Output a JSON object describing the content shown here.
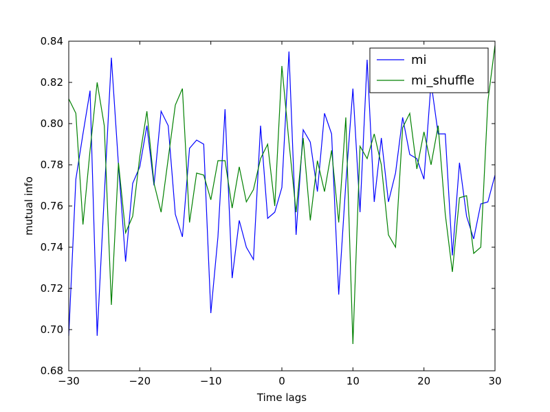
{
  "chart_data": {
    "type": "line",
    "title": "",
    "xlabel": "Time lags",
    "ylabel": "mutual info",
    "xlim": [
      -30,
      30
    ],
    "ylim": [
      0.68,
      0.84
    ],
    "xticks": [
      -30,
      -20,
      -10,
      0,
      10,
      20,
      30
    ],
    "xtick_labels": [
      "−30",
      "−20",
      "−10",
      "0",
      "10",
      "20",
      "30"
    ],
    "yticks": [
      0.68,
      0.7,
      0.72,
      0.74,
      0.76,
      0.78,
      0.8,
      0.82,
      0.84
    ],
    "ytick_labels": [
      "0.68",
      "0.70",
      "0.72",
      "0.74",
      "0.76",
      "0.78",
      "0.80",
      "0.82",
      "0.84"
    ],
    "grid": false,
    "legend_position": "top-right",
    "x": [
      -30,
      -29,
      -28,
      -27,
      -26,
      -25,
      -24,
      -23,
      -22,
      -21,
      -20,
      -19,
      -18,
      -17,
      -16,
      -15,
      -14,
      -13,
      -12,
      -11,
      -10,
      -9,
      -8,
      -7,
      -6,
      -5,
      -4,
      -3,
      -2,
      -1,
      0,
      1,
      2,
      3,
      4,
      5,
      6,
      7,
      8,
      9,
      10,
      11,
      12,
      13,
      14,
      15,
      16,
      17,
      18,
      19,
      20,
      21,
      22,
      23,
      24,
      25,
      26,
      27,
      28,
      29,
      30
    ],
    "series": [
      {
        "name": "mi",
        "color": "#0000ff",
        "values": [
          0.697,
          0.773,
          0.795,
          0.816,
          0.697,
          0.765,
          0.832,
          0.78,
          0.733,
          0.771,
          0.779,
          0.799,
          0.77,
          0.806,
          0.799,
          0.756,
          0.745,
          0.788,
          0.792,
          0.79,
          0.708,
          0.745,
          0.807,
          0.725,
          0.753,
          0.74,
          0.734,
          0.799,
          0.754,
          0.757,
          0.769,
          0.835,
          0.746,
          0.797,
          0.791,
          0.767,
          0.805,
          0.795,
          0.717,
          0.771,
          0.817,
          0.757,
          0.831,
          0.762,
          0.793,
          0.762,
          0.776,
          0.803,
          0.785,
          0.783,
          0.773,
          0.82,
          0.795,
          0.795,
          0.736,
          0.781,
          0.755,
          0.744,
          0.761,
          0.762,
          0.775
        ]
      },
      {
        "name": "mi_shuffle",
        "color": "#008000",
        "values": [
          0.812,
          0.805,
          0.751,
          0.787,
          0.82,
          0.799,
          0.712,
          0.781,
          0.747,
          0.755,
          0.784,
          0.806,
          0.771,
          0.757,
          0.783,
          0.809,
          0.817,
          0.752,
          0.776,
          0.775,
          0.763,
          0.782,
          0.782,
          0.759,
          0.779,
          0.762,
          0.768,
          0.783,
          0.79,
          0.76,
          0.828,
          0.791,
          0.757,
          0.793,
          0.753,
          0.782,
          0.767,
          0.787,
          0.752,
          0.803,
          0.693,
          0.789,
          0.783,
          0.795,
          0.78,
          0.746,
          0.74,
          0.798,
          0.805,
          0.778,
          0.796,
          0.78,
          0.799,
          0.756,
          0.728,
          0.764,
          0.765,
          0.737,
          0.74,
          0.811,
          0.838
        ]
      }
    ]
  }
}
